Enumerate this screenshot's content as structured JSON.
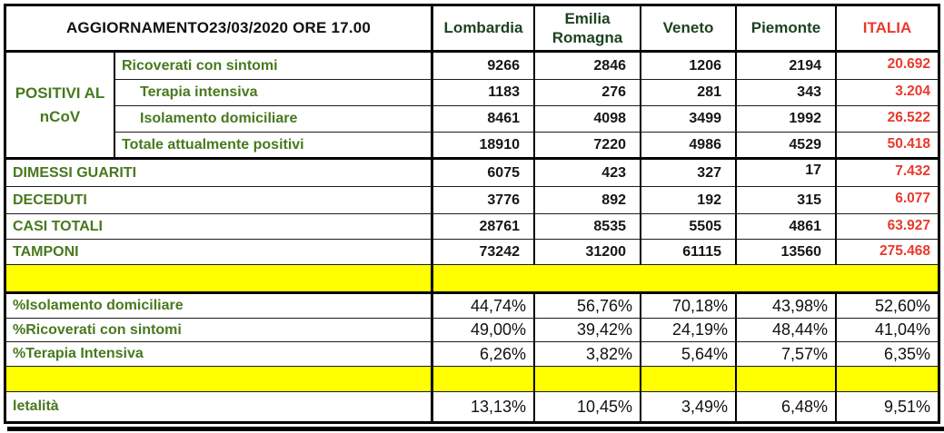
{
  "meta": {
    "kind": "covid-19 regional summary table (Italy, spreadsheet style)",
    "colors": {
      "label_green": "#47791e",
      "header_dark_green": "#1d4220",
      "italia_red": "#e93a2e",
      "separator_yellow": "#ffff00",
      "value_black": "#161616",
      "grid_black": "#000000"
    }
  },
  "table": {
    "title": "AGGIORNAMENTO23/03/2020 ORE 17.00",
    "column_headers": [
      "Lombardia",
      "Emilia\nRomagna",
      "Veneto",
      "Piemonte",
      "ITALIA"
    ],
    "sections": {
      "positivi": {
        "group_label": "POSITIVI AL\nnCoV",
        "rows": [
          {
            "label": "Ricoverati con sintomi",
            "values": [
              "9266",
              "2846",
              "1206",
              "2194"
            ],
            "italia": "20.692"
          },
          {
            "label": "Terapia intensiva",
            "values": [
              "1183",
              "276",
              "281",
              "343"
            ],
            "italia": "3.204"
          },
          {
            "label": "Isolamento domiciliare",
            "values": [
              "8461",
              "4098",
              "3499",
              "1992"
            ],
            "italia": "26.522"
          },
          {
            "label": "Totale attualmente positivi",
            "values": [
              "18910",
              "7220",
              "4986",
              "4529"
            ],
            "italia": "50.418"
          }
        ]
      },
      "totals": [
        {
          "label": "DIMESSI GUARITI",
          "values": [
            "6075",
            "423",
            "327",
            "17"
          ],
          "italia": "7.432"
        },
        {
          "label": "DECEDUTI",
          "values": [
            "3776",
            "892",
            "192",
            "315"
          ],
          "italia": "6.077"
        },
        {
          "label": "CASI TOTALI",
          "values": [
            "28761",
            "8535",
            "5505",
            "4861"
          ],
          "italia": "63.927"
        },
        {
          "label": "TAMPONI",
          "values": [
            "73242",
            "31200",
            "61115",
            "13560"
          ],
          "italia": "275.468"
        }
      ],
      "percentages": [
        {
          "label": "%Isolamento domiciliare",
          "values": [
            "44,74%",
            "56,76%",
            "70,18%",
            "43,98%",
            "52,60%"
          ]
        },
        {
          "label": "%Ricoverati con sintomi",
          "values": [
            "49,00%",
            "39,42%",
            "24,19%",
            "48,44%",
            "41,04%"
          ]
        },
        {
          "label": "%Terapia Intensiva",
          "values": [
            "6,26%",
            "3,82%",
            "5,64%",
            "7,57%",
            "6,35%"
          ]
        }
      ],
      "lethality": {
        "label": "letalità",
        "values": [
          "13,13%",
          "10,45%",
          "3,49%",
          "6,48%",
          "9,51%"
        ]
      }
    }
  }
}
